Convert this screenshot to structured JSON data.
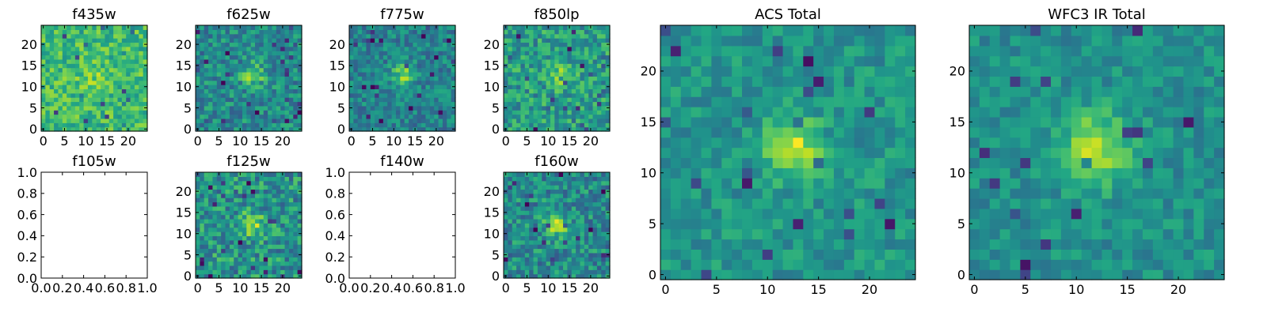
{
  "figure": {
    "panels": [
      {
        "title": "f435w"
      },
      {
        "title": "f625w"
      },
      {
        "title": "f775w"
      },
      {
        "title": "f850lp"
      },
      {
        "title": "f105w"
      },
      {
        "title": "f125w"
      },
      {
        "title": "f140w"
      },
      {
        "title": "f160w"
      },
      {
        "title": "ACS Total"
      },
      {
        "title": "WFC3 IR Total"
      }
    ]
  },
  "chart_data": [
    {
      "type": "heatmap",
      "title": "f435w",
      "colormap": "viridis",
      "xlim": [
        -0.5,
        24.5
      ],
      "ylim": [
        -0.5,
        24.5
      ],
      "xticks": [
        0,
        5,
        10,
        15,
        20
      ],
      "yticks": [
        0,
        5,
        10,
        15,
        20
      ],
      "grid": false
    },
    {
      "type": "heatmap",
      "title": "f625w",
      "colormap": "viridis",
      "xlim": [
        -0.5,
        24.5
      ],
      "ylim": [
        -0.5,
        24.5
      ],
      "xticks": [
        0,
        5,
        10,
        15,
        20
      ],
      "yticks": [
        0,
        5,
        10,
        15,
        20
      ],
      "grid": false
    },
    {
      "type": "heatmap",
      "title": "f775w",
      "colormap": "viridis",
      "xlim": [
        -0.5,
        24.5
      ],
      "ylim": [
        -0.5,
        24.5
      ],
      "xticks": [
        0,
        5,
        10,
        15,
        20
      ],
      "yticks": [
        0,
        5,
        10,
        15,
        20
      ],
      "grid": false
    },
    {
      "type": "heatmap",
      "title": "f850lp",
      "colormap": "viridis",
      "xlim": [
        -0.5,
        24.5
      ],
      "ylim": [
        -0.5,
        24.5
      ],
      "xticks": [
        0,
        5,
        10,
        15,
        20
      ],
      "yticks": [
        0,
        5,
        10,
        15,
        20
      ],
      "grid": false
    },
    {
      "type": "empty",
      "title": "f105w",
      "xlim": [
        0,
        1
      ],
      "ylim": [
        0,
        1
      ],
      "xticks": [
        "0.0",
        "0.2",
        "0.4",
        "0.6",
        "0.8",
        "1.0"
      ],
      "yticks": [
        "0.0",
        "0.2",
        "0.4",
        "0.6",
        "0.8",
        "1.0"
      ],
      "grid": false
    },
    {
      "type": "heatmap",
      "title": "f125w",
      "colormap": "viridis",
      "xlim": [
        -0.5,
        24.5
      ],
      "ylim": [
        -0.5,
        24.5
      ],
      "xticks": [
        0,
        5,
        10,
        15,
        20
      ],
      "yticks": [
        0,
        5,
        10,
        15,
        20
      ],
      "grid": false
    },
    {
      "type": "empty",
      "title": "f140w",
      "xlim": [
        0,
        1
      ],
      "ylim": [
        0,
        1
      ],
      "xticks": [
        "0.0",
        "0.2",
        "0.4",
        "0.6",
        "0.8",
        "1.0"
      ],
      "yticks": [
        "0.0",
        "0.2",
        "0.4",
        "0.6",
        "0.8",
        "1.0"
      ],
      "grid": false
    },
    {
      "type": "heatmap",
      "title": "f160w",
      "colormap": "viridis",
      "xlim": [
        -0.5,
        24.5
      ],
      "ylim": [
        -0.5,
        24.5
      ],
      "xticks": [
        0,
        5,
        10,
        15,
        20
      ],
      "yticks": [
        0,
        5,
        10,
        15,
        20
      ],
      "grid": false
    },
    {
      "type": "heatmap",
      "title": "ACS Total",
      "colormap": "viridis",
      "xlim": [
        -0.5,
        24.5
      ],
      "ylim": [
        -0.5,
        24.5
      ],
      "xticks": [
        0,
        5,
        10,
        15,
        20
      ],
      "yticks": [
        0,
        5,
        10,
        15,
        20
      ],
      "grid": false
    },
    {
      "type": "heatmap",
      "title": "WFC3 IR Total",
      "colormap": "viridis",
      "xlim": [
        -0.5,
        24.5
      ],
      "ylim": [
        -0.5,
        24.5
      ],
      "xticks": [
        0,
        5,
        10,
        15,
        20
      ],
      "yticks": [
        0,
        5,
        10,
        15,
        20
      ],
      "grid": false
    }
  ]
}
